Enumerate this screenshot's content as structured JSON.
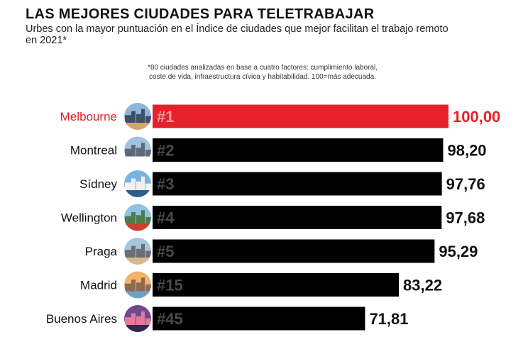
{
  "header": {
    "title": "LAS MEJORES CIUDADES PARA TELETRABAJAR",
    "subtitle": "Urbes con la mayor puntuación en el Índice de ciudades que mejor facilitan el trabajo remoto en 2021*",
    "footnote_line1": "*80 ciudades analizadas en base a cuatro factores: cumplimiento laboral,",
    "footnote_line2": "coste de vida, infraestructura cívica y habitabilidad. 100=más adecuada."
  },
  "colors": {
    "highlight": "#e5212b",
    "bar": "#000000",
    "rank_text": "#4a4a4a",
    "label_text": "#111111"
  },
  "chart_data": {
    "type": "bar",
    "orientation": "horizontal",
    "title": "LAS MEJORES CIUDADES PARA TELETRABAJAR",
    "xlabel": "",
    "ylabel": "",
    "xlim": [
      0,
      100
    ],
    "categories": [
      "Melbourne",
      "Montreal",
      "Sídney",
      "Wellington",
      "Praga",
      "Madrid",
      "Buenos Aires"
    ],
    "ranks": [
      "#1",
      "#2",
      "#3",
      "#4",
      "#5",
      "#15",
      "#45"
    ],
    "values": [
      100.0,
      98.2,
      97.76,
      97.68,
      95.29,
      83.22,
      71.81
    ],
    "value_labels": [
      "100,00",
      "98,20",
      "97,76",
      "97,68",
      "95,29",
      "83,22",
      "71,81"
    ],
    "highlighted": [
      true,
      false,
      false,
      false,
      false,
      false,
      false
    ],
    "icons": [
      "melbourne-skyline-icon",
      "montreal-skyline-icon",
      "sydney-opera-house-icon",
      "wellington-harbour-icon",
      "prague-bridge-icon",
      "madrid-skyline-icon",
      "buenos-aires-skyline-icon"
    ],
    "grid": false,
    "legend": "none"
  }
}
